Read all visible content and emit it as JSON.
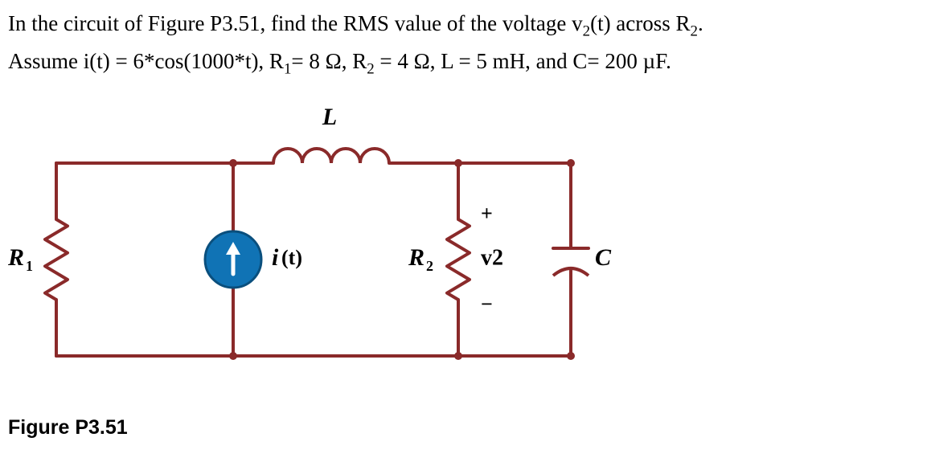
{
  "problem": {
    "line1_a": "In the circuit of Figure P3.51, find the RMS value of the voltage v",
    "line1_b": "(t) across R",
    "line1_c": ".",
    "sub2": "2",
    "line2_a": " Assume i(t) = 6*cos(1000*t), R",
    "line2_b": "= 8 Ω, R",
    "line2_c": " = 4 Ω, L =  5 mH, and C= 200 µF.",
    "sub1": "1"
  },
  "figure_label": "Figure P3.51",
  "circuit": {
    "type": "circuit-diagram",
    "wire_color": "#8a2a2a",
    "wire_width": 4,
    "fill_white": "#ffffff",
    "current_src_fill": "#1073b5",
    "current_src_stroke": "#0a4f7d",
    "node_fill": "#8a2a2a",
    "text_color": "#000000",
    "label_fontsize": 28,
    "sub_fontsize": 18,
    "labels": {
      "R1": {
        "main": "R",
        "sub": "1"
      },
      "R2": {
        "main": "R",
        "sub": "2"
      },
      "C": {
        "main": "C"
      },
      "L": {
        "main": "L"
      },
      "i": {
        "main": "i",
        "paren": "(t)"
      },
      "v2": {
        "main": "v2"
      },
      "plus": "+",
      "minus": "−"
    }
  }
}
